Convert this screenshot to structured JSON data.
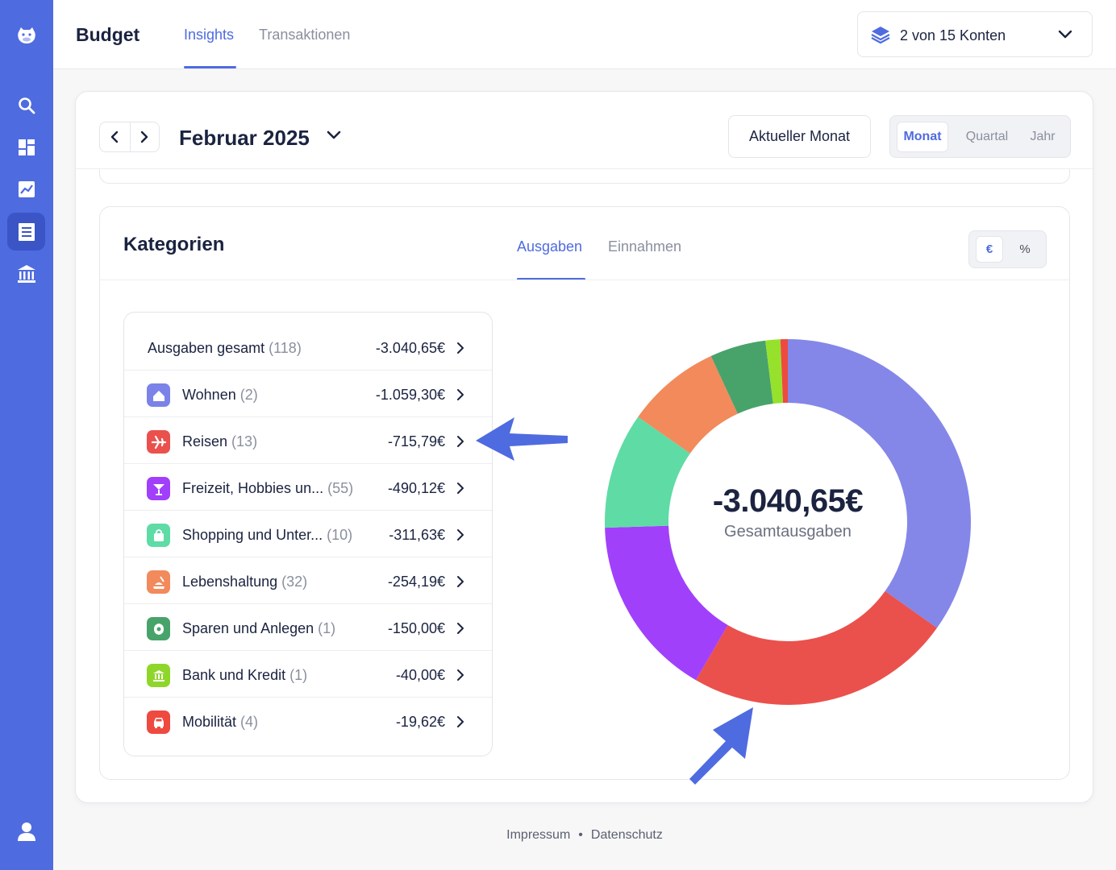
{
  "app": {
    "title": "Budget"
  },
  "top_tabs": [
    {
      "label": "Insights",
      "active": true
    },
    {
      "label": "Transaktionen",
      "active": false
    }
  ],
  "account_selector": {
    "label": "2 von 15 Konten",
    "icon": "layers-icon"
  },
  "sidebar": {
    "items": [
      {
        "name": "logo",
        "icon": "hippo-logo-icon"
      },
      {
        "name": "search",
        "icon": "search-icon"
      },
      {
        "name": "dashboard",
        "icon": "dashboard-icon"
      },
      {
        "name": "analytics",
        "icon": "chart-icon"
      },
      {
        "name": "budget",
        "icon": "list-icon",
        "active": true
      },
      {
        "name": "bank",
        "icon": "bank-icon"
      },
      {
        "name": "profile",
        "icon": "user-icon"
      }
    ]
  },
  "period": {
    "month_label": "Februar 2025",
    "current_button": "Aktueller Monat",
    "segments": [
      {
        "label": "Monat",
        "active": true
      },
      {
        "label": "Quartal",
        "active": false
      },
      {
        "label": "Jahr",
        "active": false
      }
    ]
  },
  "categories": {
    "title": "Kategorien",
    "tabs": [
      {
        "label": "Ausgaben",
        "active": true
      },
      {
        "label": "Einnahmen",
        "active": false
      }
    ],
    "units": [
      {
        "label": "€",
        "active": true
      },
      {
        "label": "%",
        "active": false
      }
    ],
    "total": {
      "name": "Ausgaben gesamt",
      "count": "(118)",
      "amount": "-3.040,65€"
    },
    "items": [
      {
        "name": "Wohnen",
        "count": "(2)",
        "amount": "-1.059,30€",
        "value": 1059.3,
        "color": "#8487e8",
        "icon_color": "#7b82e8",
        "icon": "house-icon"
      },
      {
        "name": "Reisen",
        "count": "(13)",
        "amount": "-715,79€",
        "value": 715.79,
        "color": "#ea514d",
        "icon_color": "#ea514d",
        "icon": "plane-icon"
      },
      {
        "name": "Freizeit, Hobbies un...",
        "count": "(55)",
        "amount": "-490,12€",
        "value": 490.12,
        "color": "#a140fb",
        "icon_color": "#a140fb",
        "icon": "cocktail-icon"
      },
      {
        "name": "Shopping und Unter...",
        "count": "(10)",
        "amount": "-311,63€",
        "value": 311.63,
        "color": "#5fdba6",
        "icon_color": "#5fdba6",
        "icon": "shopping-bag-icon"
      },
      {
        "name": "Lebenshaltung",
        "count": "(32)",
        "amount": "-254,19€",
        "value": 254.19,
        "color": "#f28a5c",
        "icon_color": "#f28a5c",
        "icon": "cooking-icon"
      },
      {
        "name": "Sparen und Anlegen",
        "count": "(1)",
        "amount": "-150,00€",
        "value": 150.0,
        "color": "#48a36b",
        "icon_color": "#48a36b",
        "icon": "savings-icon"
      },
      {
        "name": "Bank und Kredit",
        "count": "(1)",
        "amount": "-40,00€",
        "value": 40.0,
        "color": "#96e12c",
        "icon_color": "#8fd62a",
        "icon": "bank-icon"
      },
      {
        "name": "Mobilität",
        "count": "(4)",
        "amount": "-19,62€",
        "value": 19.62,
        "color": "#ee4a3f",
        "icon_color": "#ee4a3f",
        "icon": "car-icon"
      }
    ]
  },
  "donut": {
    "value": "-3.040,65€",
    "label": "Gesamtausgaben"
  },
  "footer": {
    "links": [
      "Impressum",
      "Datenschutz"
    ],
    "separator": "•"
  },
  "colors": {
    "accent": "#4f6be0",
    "sidebar": "#4f6be0"
  }
}
